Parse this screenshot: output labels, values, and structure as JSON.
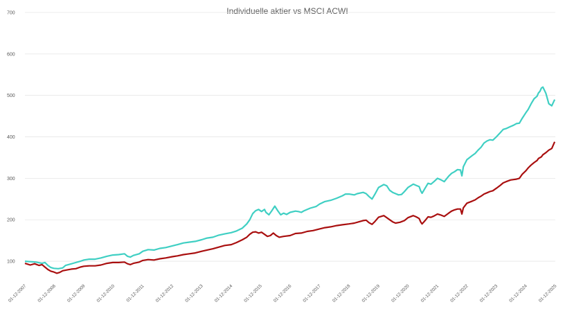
{
  "chart_data": {
    "type": "line",
    "title": "Individuelle aktier vs MSCI ACWI",
    "xlabel": "",
    "ylabel": "",
    "ylim": [
      50,
      700
    ],
    "yticks": [
      100,
      200,
      300,
      400,
      500,
      600,
      700
    ],
    "xlim": [
      2007.92,
      2025.92
    ],
    "xtick_labels": [
      "01-12-2007",
      "01-12-2008",
      "01-12-2009",
      "01-12-2010",
      "01-12-2011",
      "01-12-2012",
      "01-12-2013",
      "01-12-2014",
      "01-12-2015",
      "01-12-2016",
      "01-12-2017",
      "01-12-2018",
      "01-12-2019",
      "01-12-2020",
      "01-12-2021",
      "01-12-2022",
      "01-12-2023",
      "01-12-2024",
      "01-12-2025"
    ],
    "grid": true,
    "legend": "none",
    "series": [
      {
        "color": "#3fcfc3",
        "points": [
          [
            2007.92,
            100
          ],
          [
            2008.1,
            99
          ],
          [
            2008.3,
            98
          ],
          [
            2008.5,
            95
          ],
          [
            2008.6,
            97
          ],
          [
            2008.7,
            90
          ],
          [
            2008.8,
            85
          ],
          [
            2008.9,
            83
          ],
          [
            2009.05,
            82
          ],
          [
            2009.2,
            84
          ],
          [
            2009.3,
            90
          ],
          [
            2009.45,
            93
          ],
          [
            2009.6,
            96
          ],
          [
            2009.8,
            100
          ],
          [
            2009.92,
            103
          ],
          [
            2010.1,
            105
          ],
          [
            2010.3,
            105
          ],
          [
            2010.5,
            108
          ],
          [
            2010.7,
            112
          ],
          [
            2010.9,
            115
          ],
          [
            2011.1,
            116
          ],
          [
            2011.3,
            118
          ],
          [
            2011.4,
            112
          ],
          [
            2011.5,
            110
          ],
          [
            2011.6,
            114
          ],
          [
            2011.8,
            118
          ],
          [
            2011.92,
            124
          ],
          [
            2012.1,
            128
          ],
          [
            2012.3,
            127
          ],
          [
            2012.5,
            131
          ],
          [
            2012.7,
            133
          ],
          [
            2012.92,
            137
          ],
          [
            2013.1,
            140
          ],
          [
            2013.3,
            144
          ],
          [
            2013.5,
            146
          ],
          [
            2013.7,
            148
          ],
          [
            2013.92,
            152
          ],
          [
            2014.1,
            156
          ],
          [
            2014.3,
            158
          ],
          [
            2014.5,
            163
          ],
          [
            2014.7,
            166
          ],
          [
            2014.92,
            169
          ],
          [
            2015.1,
            173
          ],
          [
            2015.3,
            180
          ],
          [
            2015.45,
            190
          ],
          [
            2015.55,
            200
          ],
          [
            2015.65,
            215
          ],
          [
            2015.75,
            222
          ],
          [
            2015.85,
            225
          ],
          [
            2015.95,
            220
          ],
          [
            2016.05,
            225
          ],
          [
            2016.1,
            218
          ],
          [
            2016.2,
            212
          ],
          [
            2016.3,
            222
          ],
          [
            2016.4,
            233
          ],
          [
            2016.5,
            222
          ],
          [
            2016.6,
            212
          ],
          [
            2016.7,
            216
          ],
          [
            2016.8,
            213
          ],
          [
            2016.92,
            218
          ],
          [
            2017.1,
            221
          ],
          [
            2017.2,
            220
          ],
          [
            2017.3,
            218
          ],
          [
            2017.4,
            222
          ],
          [
            2017.6,
            228
          ],
          [
            2017.8,
            232
          ],
          [
            2017.92,
            238
          ],
          [
            2018.1,
            244
          ],
          [
            2018.3,
            247
          ],
          [
            2018.5,
            252
          ],
          [
            2018.7,
            258
          ],
          [
            2018.8,
            262
          ],
          [
            2018.92,
            262
          ],
          [
            2019.1,
            260
          ],
          [
            2019.2,
            263
          ],
          [
            2019.4,
            266
          ],
          [
            2019.5,
            263
          ],
          [
            2019.6,
            256
          ],
          [
            2019.7,
            250
          ],
          [
            2019.8,
            262
          ],
          [
            2019.92,
            278
          ],
          [
            2020.1,
            285
          ],
          [
            2020.2,
            282
          ],
          [
            2020.3,
            271
          ],
          [
            2020.4,
            266
          ],
          [
            2020.5,
            263
          ],
          [
            2020.6,
            260
          ],
          [
            2020.7,
            261
          ],
          [
            2020.8,
            268
          ],
          [
            2020.92,
            278
          ],
          [
            2021.1,
            286
          ],
          [
            2021.2,
            283
          ],
          [
            2021.3,
            280
          ],
          [
            2021.35,
            270
          ],
          [
            2021.4,
            264
          ],
          [
            2021.5,
            276
          ],
          [
            2021.6,
            288
          ],
          [
            2021.7,
            286
          ],
          [
            2021.8,
            292
          ],
          [
            2021.92,
            300
          ],
          [
            2022.05,
            296
          ],
          [
            2022.15,
            292
          ],
          [
            2022.3,
            305
          ],
          [
            2022.4,
            312
          ],
          [
            2022.5,
            316
          ],
          [
            2022.6,
            321
          ],
          [
            2022.7,
            320
          ],
          [
            2022.75,
            306
          ],
          [
            2022.8,
            328
          ],
          [
            2022.92,
            345
          ],
          [
            2023.1,
            355
          ],
          [
            2023.2,
            360
          ],
          [
            2023.3,
            368
          ],
          [
            2023.4,
            375
          ],
          [
            2023.5,
            385
          ],
          [
            2023.6,
            390
          ],
          [
            2023.7,
            393
          ],
          [
            2023.8,
            392
          ],
          [
            2023.92,
            400
          ],
          [
            2024.05,
            410
          ],
          [
            2024.15,
            418
          ],
          [
            2024.25,
            420
          ],
          [
            2024.4,
            425
          ],
          [
            2024.5,
            428
          ],
          [
            2024.6,
            432
          ],
          [
            2024.7,
            433
          ],
          [
            2024.8,
            445
          ],
          [
            2024.92,
            458
          ],
          [
            2025.0,
            466
          ],
          [
            2025.1,
            480
          ],
          [
            2025.2,
            492
          ],
          [
            2025.3,
            498
          ],
          [
            2025.35,
            506
          ],
          [
            2025.4,
            510
          ],
          [
            2025.45,
            518
          ],
          [
            2025.5,
            520
          ],
          [
            2025.6,
            505
          ],
          [
            2025.7,
            480
          ],
          [
            2025.8,
            475
          ],
          [
            2025.9,
            490
          ]
        ]
      },
      {
        "color": "#a90f0f",
        "points": [
          [
            2007.92,
            95
          ],
          [
            2008.1,
            91
          ],
          [
            2008.25,
            94
          ],
          [
            2008.4,
            90
          ],
          [
            2008.5,
            92
          ],
          [
            2008.6,
            86
          ],
          [
            2008.7,
            80
          ],
          [
            2008.8,
            76
          ],
          [
            2008.9,
            74
          ],
          [
            2009.0,
            71
          ],
          [
            2009.1,
            73
          ],
          [
            2009.2,
            77
          ],
          [
            2009.35,
            79
          ],
          [
            2009.5,
            81
          ],
          [
            2009.65,
            82
          ],
          [
            2009.8,
            86
          ],
          [
            2009.92,
            88
          ],
          [
            2010.1,
            89
          ],
          [
            2010.3,
            89
          ],
          [
            2010.5,
            91
          ],
          [
            2010.7,
            95
          ],
          [
            2010.9,
            97
          ],
          [
            2011.1,
            97
          ],
          [
            2011.3,
            98
          ],
          [
            2011.4,
            94
          ],
          [
            2011.5,
            92
          ],
          [
            2011.6,
            95
          ],
          [
            2011.8,
            98
          ],
          [
            2011.92,
            102
          ],
          [
            2012.1,
            104
          ],
          [
            2012.3,
            103
          ],
          [
            2012.5,
            106
          ],
          [
            2012.7,
            108
          ],
          [
            2012.92,
            111
          ],
          [
            2013.1,
            113
          ],
          [
            2013.3,
            116
          ],
          [
            2013.5,
            118
          ],
          [
            2013.7,
            120
          ],
          [
            2013.92,
            124
          ],
          [
            2014.1,
            127
          ],
          [
            2014.3,
            130
          ],
          [
            2014.5,
            134
          ],
          [
            2014.7,
            138
          ],
          [
            2014.92,
            140
          ],
          [
            2015.1,
            145
          ],
          [
            2015.3,
            152
          ],
          [
            2015.45,
            158
          ],
          [
            2015.55,
            165
          ],
          [
            2015.65,
            170
          ],
          [
            2015.75,
            171
          ],
          [
            2015.85,
            168
          ],
          [
            2015.95,
            170
          ],
          [
            2016.05,
            165
          ],
          [
            2016.15,
            160
          ],
          [
            2016.25,
            162
          ],
          [
            2016.35,
            168
          ],
          [
            2016.45,
            162
          ],
          [
            2016.55,
            158
          ],
          [
            2016.7,
            160
          ],
          [
            2016.92,
            162
          ],
          [
            2017.1,
            167
          ],
          [
            2017.3,
            168
          ],
          [
            2017.5,
            172
          ],
          [
            2017.7,
            174
          ],
          [
            2017.92,
            178
          ],
          [
            2018.1,
            181
          ],
          [
            2018.3,
            183
          ],
          [
            2018.5,
            186
          ],
          [
            2018.7,
            188
          ],
          [
            2018.92,
            190
          ],
          [
            2019.1,
            192
          ],
          [
            2019.25,
            195
          ],
          [
            2019.4,
            198
          ],
          [
            2019.5,
            199
          ],
          [
            2019.6,
            193
          ],
          [
            2019.7,
            189
          ],
          [
            2019.8,
            196
          ],
          [
            2019.92,
            206
          ],
          [
            2020.1,
            210
          ],
          [
            2020.2,
            205
          ],
          [
            2020.3,
            200
          ],
          [
            2020.4,
            195
          ],
          [
            2020.5,
            192
          ],
          [
            2020.65,
            194
          ],
          [
            2020.8,
            198
          ],
          [
            2020.92,
            205
          ],
          [
            2021.1,
            210
          ],
          [
            2021.2,
            207
          ],
          [
            2021.3,
            203
          ],
          [
            2021.35,
            195
          ],
          [
            2021.4,
            190
          ],
          [
            2021.5,
            198
          ],
          [
            2021.6,
            207
          ],
          [
            2021.7,
            206
          ],
          [
            2021.8,
            209
          ],
          [
            2021.92,
            214
          ],
          [
            2022.05,
            211
          ],
          [
            2022.15,
            208
          ],
          [
            2022.3,
            216
          ],
          [
            2022.4,
            221
          ],
          [
            2022.5,
            224
          ],
          [
            2022.6,
            226
          ],
          [
            2022.7,
            226
          ],
          [
            2022.75,
            214
          ],
          [
            2022.8,
            229
          ],
          [
            2022.92,
            240
          ],
          [
            2023.1,
            245
          ],
          [
            2023.2,
            248
          ],
          [
            2023.3,
            253
          ],
          [
            2023.4,
            257
          ],
          [
            2023.5,
            262
          ],
          [
            2023.6,
            265
          ],
          [
            2023.7,
            268
          ],
          [
            2023.8,
            270
          ],
          [
            2023.92,
            276
          ],
          [
            2024.05,
            283
          ],
          [
            2024.15,
            289
          ],
          [
            2024.25,
            292
          ],
          [
            2024.4,
            296
          ],
          [
            2024.5,
            297
          ],
          [
            2024.6,
            298
          ],
          [
            2024.7,
            300
          ],
          [
            2024.8,
            310
          ],
          [
            2024.92,
            318
          ],
          [
            2025.0,
            325
          ],
          [
            2025.1,
            332
          ],
          [
            2025.2,
            338
          ],
          [
            2025.3,
            343
          ],
          [
            2025.35,
            348
          ],
          [
            2025.4,
            350
          ],
          [
            2025.45,
            352
          ],
          [
            2025.5,
            357
          ],
          [
            2025.6,
            362
          ],
          [
            2025.7,
            368
          ],
          [
            2025.8,
            372
          ],
          [
            2025.9,
            388
          ]
        ]
      }
    ]
  }
}
